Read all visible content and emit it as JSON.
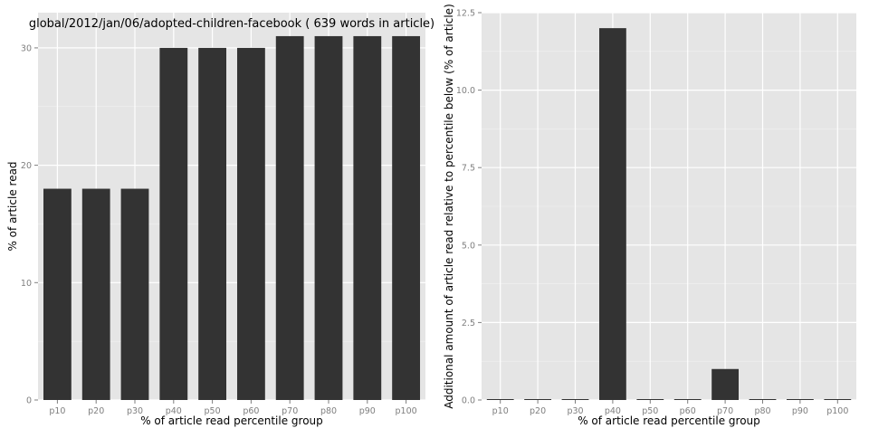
{
  "chart_data": [
    {
      "type": "bar",
      "title": "global/2012/jan/06/adopted-children-facebook ( 639 words in article)",
      "xlabel": "% of article read percentile group",
      "ylabel": "% of article read",
      "categories": [
        "p10",
        "p20",
        "p30",
        "p40",
        "p50",
        "p60",
        "p70",
        "p80",
        "p90",
        "p100"
      ],
      "values": [
        18,
        18,
        18,
        30,
        30,
        30,
        31,
        31,
        31,
        31
      ],
      "ylim": [
        0,
        33
      ],
      "yticks": [
        0,
        10,
        20,
        30
      ],
      "ytick_labels": [
        "0",
        "10",
        "20",
        "30"
      ],
      "grid": true,
      "bar_color": "#333333",
      "panel_color": "#e5e5e5"
    },
    {
      "type": "bar",
      "title": "",
      "xlabel": "% of article read percentile group",
      "ylabel": "Additional amount of article read relative to percentile below (% of article)",
      "categories": [
        "p10",
        "p20",
        "p30",
        "p40",
        "p50",
        "p60",
        "p70",
        "p80",
        "p90",
        "p100"
      ],
      "values": [
        0,
        0,
        0,
        12,
        0,
        0,
        1,
        0,
        0,
        0
      ],
      "ylim": [
        0,
        12.5
      ],
      "yticks": [
        0,
        2.5,
        5,
        7.5,
        10,
        12.5
      ],
      "ytick_labels": [
        "0.0",
        "2.5",
        "5.0",
        "7.5",
        "10.0",
        "12.5"
      ],
      "grid": true,
      "bar_color": "#333333",
      "panel_color": "#e5e5e5"
    }
  ]
}
